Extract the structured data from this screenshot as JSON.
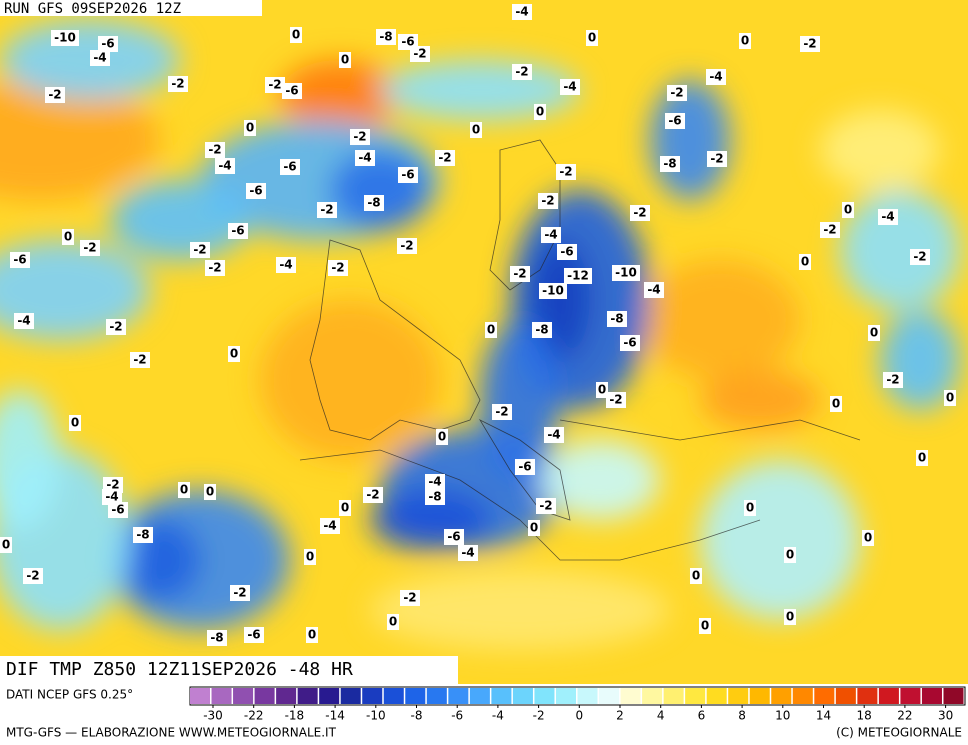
{
  "header": {
    "run": "RUN GFS 09SEP2026 12Z"
  },
  "map": {
    "contour_labels": [
      -4,
      -10,
      -6,
      -4,
      0,
      -8,
      -6,
      -2,
      0,
      0,
      -2,
      0,
      -2,
      -2,
      -6,
      -2,
      -4,
      -4,
      -2,
      -2,
      0,
      0,
      0,
      -6,
      -2,
      -2,
      -4,
      -2,
      -6,
      -4,
      -8,
      -2,
      -6,
      -2,
      -6,
      -8,
      -2,
      -2,
      -2,
      0,
      -4,
      -6,
      0,
      -2,
      -2,
      -4,
      -2,
      -2,
      -6,
      -6,
      -2,
      -4,
      -2,
      0,
      -2,
      -2,
      -12,
      -10,
      -4,
      -10,
      -4,
      -2,
      0,
      -8,
      -8,
      -6,
      0,
      -2,
      0,
      -2,
      0,
      -2,
      -2,
      0,
      0,
      0,
      0,
      -4,
      -6,
      0,
      -4,
      -2,
      0,
      0,
      -2,
      -8,
      -4,
      -6,
      -2,
      0,
      0,
      -4,
      0,
      -8,
      -6,
      0,
      0,
      -4,
      0,
      0,
      -2,
      0,
      -2,
      -2,
      0,
      0,
      0,
      -8,
      -6,
      0
    ]
  },
  "footer_bar": {
    "title": "DIF TMP Z850 12Z11SEP2026 -48 HR"
  },
  "legend": {
    "source": "DATI NCEP GFS 0.25°",
    "colors": [
      "#c080d0",
      "#a868c0",
      "#9050b0",
      "#7838a0",
      "#602890",
      "#401c88",
      "#281a90",
      "#1a2aa0",
      "#1a3cc0",
      "#1a50d8",
      "#1e64e8",
      "#2878f0",
      "#3890f8",
      "#48a8fc",
      "#58c0fc",
      "#6cd4fc",
      "#80e4fc",
      "#a0f0fc",
      "#c8f8fc",
      "#e8fcfc",
      "#fffcd0",
      "#fff8a0",
      "#fff070",
      "#ffe840",
      "#ffdc20",
      "#ffcc10",
      "#ffb800",
      "#ffa000",
      "#ff8800",
      "#ff6c00",
      "#f05000",
      "#e03010",
      "#d01820",
      "#c01030",
      "#a80830",
      "#900828"
    ],
    "ticks": [
      -30,
      -22,
      -18,
      -14,
      -10,
      -8,
      -6,
      -4,
      -2,
      0,
      2,
      4,
      6,
      8,
      10,
      14,
      18,
      22,
      30
    ]
  },
  "credits": {
    "left": "MTG-GFS — ELABORAZIONE WWW.METEOGIORNALE.IT",
    "right": "(C) METEOGIORNALE"
  }
}
